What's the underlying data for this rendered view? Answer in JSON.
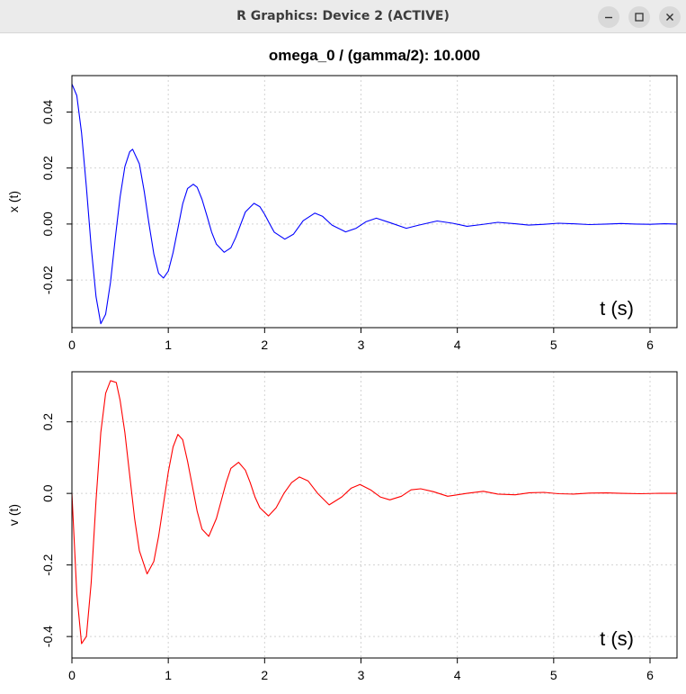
{
  "window": {
    "title": "R Graphics: Device 2 (ACTIVE)",
    "controls": [
      "minimize-icon",
      "maximize-icon",
      "close-icon"
    ]
  },
  "colors": {
    "position_line": "#0000ff",
    "velocity_line": "#ff0000",
    "grid": "#d3d3d3",
    "titlebar": "#ebebeb"
  },
  "chart_data": [
    {
      "type": "line",
      "title": "omega_0 / (gamma/2): 10.000",
      "ylabel": "x (t)",
      "annotation": "t (s)",
      "xlim": [
        0,
        6.28
      ],
      "ylim": [
        -0.037,
        0.053
      ],
      "xticks": [
        "0",
        "1",
        "2",
        "3",
        "4",
        "5",
        "6"
      ],
      "yticks": [
        "-0.02",
        "0.00",
        "0.02",
        "0.04"
      ],
      "grid": true,
      "series": [
        {
          "color": "#0000ff",
          "x": [
            0,
            0.05,
            0.1,
            0.15,
            0.2,
            0.25,
            0.3,
            0.35,
            0.4,
            0.45,
            0.5,
            0.55,
            0.6,
            0.63,
            0.7,
            0.75,
            0.8,
            0.85,
            0.9,
            0.95,
            1.0,
            1.05,
            1.1,
            1.15,
            1.2,
            1.26,
            1.3,
            1.35,
            1.4,
            1.45,
            1.5,
            1.58,
            1.65,
            1.7,
            1.75,
            1.8,
            1.89,
            1.95,
            2.0,
            2.05,
            2.1,
            2.21,
            2.3,
            2.4,
            2.52,
            2.6,
            2.7,
            2.84,
            2.95,
            3.05,
            3.16,
            3.3,
            3.47,
            3.6,
            3.79,
            3.95,
            4.1,
            4.25,
            4.42,
            4.6,
            4.74,
            4.9,
            5.05,
            5.2,
            5.37,
            5.55,
            5.7,
            5.85,
            6.0,
            6.15,
            6.28
          ],
          "values": [
            0.05,
            0.0459,
            0.0326,
            0.0131,
            -0.0081,
            -0.0259,
            -0.0356,
            -0.0322,
            -0.0208,
            -0.0051,
            0.0097,
            0.0205,
            0.0258,
            0.0267,
            0.0215,
            0.0117,
            0.0001,
            -0.0107,
            -0.0176,
            -0.0193,
            -0.0168,
            -0.0102,
            -0.0015,
            0.0072,
            0.0127,
            0.0142,
            0.0131,
            0.0088,
            0.0031,
            -0.0029,
            -0.0072,
            -0.0101,
            -0.0085,
            -0.0048,
            -0.0003,
            0.0043,
            0.0074,
            0.0062,
            0.0035,
            0.0002,
            -0.0029,
            -0.0054,
            -0.0036,
            0.0012,
            0.0039,
            0.0028,
            -0.0004,
            -0.0028,
            -0.0015,
            0.0008,
            0.0021,
            0.0005,
            -0.0015,
            -0.0004,
            0.0011,
            0.0003,
            -0.0008,
            -0.0002,
            0.0006,
            0.0001,
            -0.0004,
            -0.0001,
            0.0003,
            0.0001,
            -0.0002,
            0.0,
            0.0002,
            0.0,
            -0.0001,
            0.0001,
            0.0
          ]
        }
      ]
    },
    {
      "type": "line",
      "title": "",
      "ylabel": "v (t)",
      "annotation": "t (s)",
      "xlim": [
        0,
        6.28
      ],
      "ylim": [
        -0.46,
        0.34
      ],
      "xticks": [
        "0",
        "1",
        "2",
        "3",
        "4",
        "5",
        "6"
      ],
      "yticks": [
        "-0.4",
        "-0.2",
        "0.0",
        "0.2"
      ],
      "grid": true,
      "series": [
        {
          "color": "#ff0000",
          "x": [
            0,
            0.05,
            0.1,
            0.15,
            0.2,
            0.25,
            0.3,
            0.35,
            0.4,
            0.46,
            0.5,
            0.55,
            0.6,
            0.65,
            0.7,
            0.78,
            0.85,
            0.9,
            0.95,
            1.0,
            1.05,
            1.1,
            1.15,
            1.2,
            1.25,
            1.3,
            1.35,
            1.42,
            1.5,
            1.55,
            1.6,
            1.65,
            1.73,
            1.8,
            1.85,
            1.9,
            1.95,
            2.04,
            2.12,
            2.2,
            2.28,
            2.36,
            2.45,
            2.55,
            2.67,
            2.8,
            2.9,
            2.99,
            3.1,
            3.2,
            3.3,
            3.42,
            3.52,
            3.62,
            3.75,
            3.9,
            4.1,
            4.27,
            4.42,
            4.6,
            4.75,
            4.9,
            5.05,
            5.2,
            5.37,
            5.55,
            5.7,
            5.9,
            6.1,
            6.28
          ],
          "values": [
            0.0,
            -0.28,
            -0.42,
            -0.4,
            -0.25,
            -0.02,
            0.17,
            0.28,
            0.315,
            0.31,
            0.26,
            0.17,
            0.05,
            -0.07,
            -0.16,
            -0.225,
            -0.19,
            -0.12,
            -0.03,
            0.06,
            0.13,
            0.165,
            0.15,
            0.09,
            0.02,
            -0.05,
            -0.1,
            -0.12,
            -0.07,
            -0.02,
            0.03,
            0.07,
            0.087,
            0.065,
            0.03,
            -0.01,
            -0.04,
            -0.063,
            -0.04,
            0.0,
            0.03,
            0.046,
            0.035,
            0.0,
            -0.032,
            -0.01,
            0.015,
            0.025,
            0.01,
            -0.01,
            -0.018,
            -0.008,
            0.01,
            0.013,
            0.005,
            -0.008,
            0.0,
            0.006,
            -0.002,
            -0.004,
            0.002,
            0.003,
            -0.001,
            -0.002,
            0.001,
            0.0015,
            0.0,
            -0.001,
            0.0005,
            0.0
          ]
        }
      ]
    }
  ]
}
